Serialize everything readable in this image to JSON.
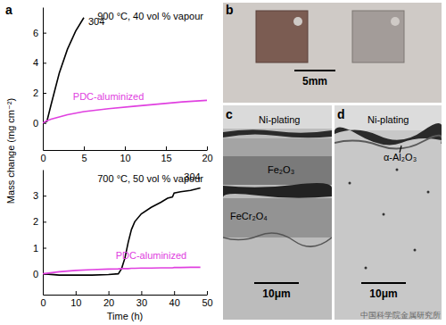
{
  "chart_data": [
    {
      "type": "line",
      "panel": "a",
      "annotations": [
        "900 °C, 40 vol % vapour"
      ],
      "y_label": "Mass change (mg cm⁻²)",
      "x": [
        0,
        0.5,
        1,
        2,
        3,
        4,
        5,
        8,
        11,
        14,
        17,
        20
      ],
      "series": [
        {
          "name": "304",
          "color": "#000000",
          "values": [
            0,
            0.1,
            1.2,
            3.3,
            4.9,
            6.1,
            7.0,
            null,
            null,
            null,
            null,
            null
          ]
        },
        {
          "name": "PDC-aluminized",
          "color": "#e040e0",
          "values": [
            0,
            0.15,
            0.25,
            0.4,
            0.55,
            0.65,
            0.75,
            0.95,
            1.1,
            1.25,
            1.4,
            1.5
          ]
        }
      ],
      "xlim": [
        0,
        20
      ],
      "xticks": [
        0,
        5,
        10,
        15,
        20
      ],
      "ylim": [
        -1.8,
        7.7
      ],
      "yticks": [
        0,
        2,
        4,
        6
      ],
      "grid": false
    },
    {
      "type": "line",
      "annotations": [
        "700 °C, 50 vol % vapour"
      ],
      "x_label": "Time (h)",
      "x": [
        0,
        5,
        10,
        15,
        20,
        23,
        24,
        25,
        26,
        27,
        28,
        30,
        33,
        36,
        38,
        39.5,
        40,
        42,
        45,
        48
      ],
      "series": [
        {
          "name": "304",
          "color": "#000000",
          "values": [
            0,
            -0.05,
            -0.05,
            -0.05,
            -0.03,
            0,
            0.2,
            0.6,
            1.2,
            1.7,
            2.0,
            2.3,
            2.55,
            2.75,
            2.9,
            2.95,
            3.1,
            3.15,
            3.2,
            3.3
          ]
        },
        {
          "name": "PDC-aluminized",
          "color": "#e040e0",
          "values": [
            0,
            0.08,
            0.13,
            0.16,
            0.18,
            0.19,
            0.2,
            0.2,
            0.2,
            0.21,
            0.21,
            0.22,
            0.22,
            0.23,
            0.23,
            0.23,
            0.24,
            0.24,
            0.25,
            0.25
          ]
        }
      ],
      "xlim": [
        0,
        50
      ],
      "xticks": [
        0,
        10,
        20,
        30,
        40,
        50
      ],
      "ylim": [
        -0.8,
        4
      ],
      "yticks": [
        0,
        1,
        2,
        3
      ],
      "grid": false
    }
  ],
  "panels": [
    {
      "label": "b",
      "scale_bar": "5mm"
    },
    {
      "label": "c",
      "texts": [
        "Ni-plating",
        "Fe₂O₃",
        "FeCr₂O₄"
      ],
      "scale_bar": "10μm"
    },
    {
      "label": "d",
      "texts": [
        "Ni-plating",
        "α-Al₂O₃"
      ],
      "scale_bar": "10μm"
    }
  ],
  "watermark": "中国科学院金属研究所"
}
